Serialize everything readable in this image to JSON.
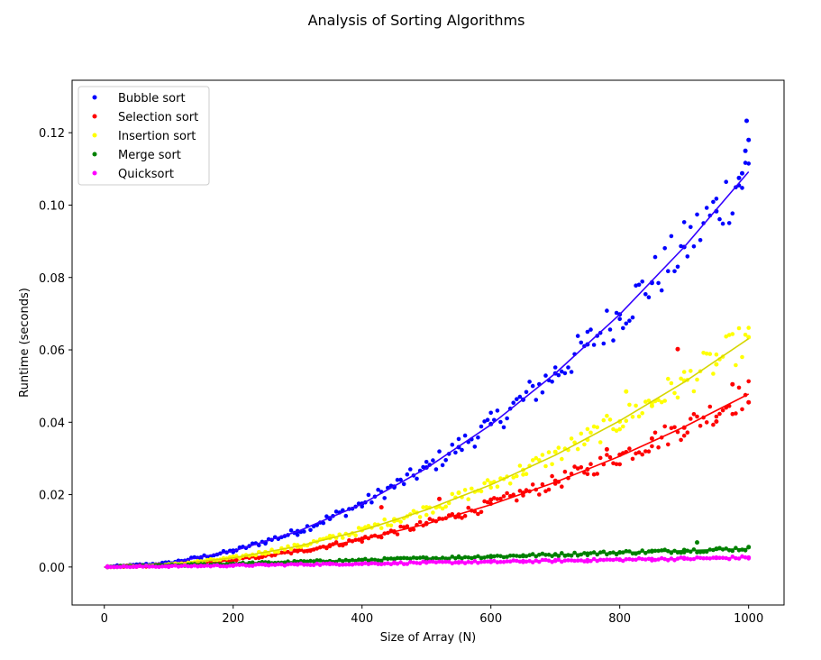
{
  "chart_data": {
    "type": "scatter",
    "title": "Analysis of Sorting Algorithms",
    "xlabel": "Size of Array (N)",
    "ylabel": "Runtime (seconds)",
    "xlim": [
      -50,
      1055
    ],
    "ylim": [
      -0.0105,
      0.1345
    ],
    "xticks": [
      0,
      200,
      400,
      600,
      800,
      1000
    ],
    "xtick_labels": [
      "0",
      "200",
      "400",
      "600",
      "800",
      "1000"
    ],
    "yticks": [
      0.0,
      0.02,
      0.04,
      0.06,
      0.08,
      0.1,
      0.12
    ],
    "ytick_labels": [
      "0.00",
      "0.02",
      "0.04",
      "0.06",
      "0.08",
      "0.10",
      "0.12"
    ],
    "grid": false,
    "legend_position": "top-left",
    "x_range": [
      5,
      1000
    ],
    "series": [
      {
        "name": "Bubble sort",
        "color": "#0000ff",
        "fit_color": "#3300ff",
        "fit_points": [
          [
            0,
            0.0
          ],
          [
            100,
            0.0011
          ],
          [
            200,
            0.0044
          ],
          [
            300,
            0.0098
          ],
          [
            400,
            0.0174
          ],
          [
            500,
            0.0273
          ],
          [
            600,
            0.0393
          ],
          [
            700,
            0.0535
          ],
          [
            800,
            0.0698
          ],
          [
            900,
            0.0884
          ],
          [
            1000,
            0.1092
          ]
        ],
        "samples": [
          [
            5,
            0.0
          ],
          [
            50,
            0.0003
          ],
          [
            100,
            0.0011
          ],
          [
            150,
            0.0025
          ],
          [
            200,
            0.0045
          ],
          [
            250,
            0.0068
          ],
          [
            300,
            0.0099
          ],
          [
            350,
            0.0133
          ],
          [
            400,
            0.0175
          ],
          [
            450,
            0.0222
          ],
          [
            500,
            0.0275
          ],
          [
            550,
            0.0331
          ],
          [
            600,
            0.0395
          ],
          [
            650,
            0.0462
          ],
          [
            700,
            0.0535
          ],
          [
            750,
            0.0615
          ],
          [
            800,
            0.0698
          ],
          [
            850,
            0.0785
          ],
          [
            900,
            0.0884
          ],
          [
            950,
            0.0983
          ],
          [
            985,
            0.1075
          ],
          [
            990,
            0.1088
          ],
          [
            995,
            0.115
          ],
          [
            997,
            0.1233
          ],
          [
            1000,
            0.118
          ]
        ]
      },
      {
        "name": "Selection sort",
        "color": "#ff0000",
        "fit_color": "#ff0000",
        "fit_points": [
          [
            0,
            0.0
          ],
          [
            100,
            0.0005
          ],
          [
            200,
            0.0019
          ],
          [
            300,
            0.0043
          ],
          [
            400,
            0.0076
          ],
          [
            500,
            0.0119
          ],
          [
            600,
            0.0172
          ],
          [
            700,
            0.0234
          ],
          [
            800,
            0.0306
          ],
          [
            900,
            0.0387
          ],
          [
            1000,
            0.0478
          ]
        ],
        "samples": [
          [
            5,
            0.0
          ],
          [
            50,
            0.0001
          ],
          [
            100,
            0.0005
          ],
          [
            150,
            0.0011
          ],
          [
            200,
            0.002
          ],
          [
            250,
            0.0031
          ],
          [
            300,
            0.0044
          ],
          [
            350,
            0.006
          ],
          [
            400,
            0.0078
          ],
          [
            430,
            0.0165
          ],
          [
            450,
            0.0098
          ],
          [
            500,
            0.0121
          ],
          [
            520,
            0.0188
          ],
          [
            550,
            0.0145
          ],
          [
            600,
            0.0186
          ],
          [
            650,
            0.0205
          ],
          [
            700,
            0.0238
          ],
          [
            750,
            0.027
          ],
          [
            780,
            0.0325
          ],
          [
            800,
            0.031
          ],
          [
            850,
            0.0355
          ],
          [
            890,
            0.0602
          ],
          [
            900,
            0.0385
          ],
          [
            950,
            0.0402
          ],
          [
            975,
            0.0505
          ],
          [
            1000,
            0.0455
          ]
        ]
      },
      {
        "name": "Insertion sort",
        "color": "#ffff00",
        "fit_color": "#d6d600",
        "fit_points": [
          [
            0,
            0.0
          ],
          [
            100,
            0.0006
          ],
          [
            200,
            0.0025
          ],
          [
            300,
            0.0057
          ],
          [
            400,
            0.0101
          ],
          [
            500,
            0.0158
          ],
          [
            600,
            0.0227
          ],
          [
            700,
            0.0309
          ],
          [
            800,
            0.0404
          ],
          [
            900,
            0.0511
          ],
          [
            1000,
            0.0631
          ]
        ],
        "samples": [
          [
            5,
            0.0
          ],
          [
            50,
            0.0002
          ],
          [
            100,
            0.0007
          ],
          [
            150,
            0.0015
          ],
          [
            200,
            0.0027
          ],
          [
            250,
            0.0041
          ],
          [
            300,
            0.006
          ],
          [
            350,
            0.008
          ],
          [
            400,
            0.0105
          ],
          [
            450,
            0.0132
          ],
          [
            500,
            0.0165
          ],
          [
            550,
            0.0205
          ],
          [
            600,
            0.0232
          ],
          [
            650,
            0.0268
          ],
          [
            700,
            0.0318
          ],
          [
            750,
            0.0352
          ],
          [
            800,
            0.0402
          ],
          [
            810,
            0.0485
          ],
          [
            850,
            0.0445
          ],
          [
            900,
            0.0515
          ],
          [
            950,
            0.056
          ],
          [
            1000,
            0.0635
          ]
        ]
      },
      {
        "name": "Merge sort",
        "color": "#008000",
        "fit_color": "#008000",
        "fit_points": [
          [
            0,
            0.0
          ],
          [
            100,
            0.0004
          ],
          [
            200,
            0.0009
          ],
          [
            300,
            0.0014
          ],
          [
            400,
            0.0019
          ],
          [
            500,
            0.0024
          ],
          [
            600,
            0.0029
          ],
          [
            700,
            0.0034
          ],
          [
            800,
            0.004
          ],
          [
            900,
            0.0045
          ],
          [
            1000,
            0.0051
          ]
        ],
        "samples": [
          [
            5,
            0.0
          ],
          [
            50,
            0.0002
          ],
          [
            100,
            0.0004
          ],
          [
            150,
            0.0006
          ],
          [
            200,
            0.0009
          ],
          [
            250,
            0.0011
          ],
          [
            300,
            0.0014
          ],
          [
            350,
            0.0016
          ],
          [
            400,
            0.0019
          ],
          [
            450,
            0.0022
          ],
          [
            500,
            0.0025
          ],
          [
            550,
            0.0027
          ],
          [
            600,
            0.003
          ],
          [
            650,
            0.0032
          ],
          [
            700,
            0.0035
          ],
          [
            750,
            0.0037
          ],
          [
            800,
            0.004
          ],
          [
            850,
            0.0043
          ],
          [
            900,
            0.0047
          ],
          [
            920,
            0.0068
          ],
          [
            950,
            0.005
          ],
          [
            1000,
            0.0055
          ]
        ]
      },
      {
        "name": "Quicksort",
        "color": "#ff00ff",
        "fit_color": "#ff00ff",
        "fit_points": [
          [
            0,
            0.0
          ],
          [
            100,
            0.0002
          ],
          [
            200,
            0.0004
          ],
          [
            300,
            0.0007
          ],
          [
            400,
            0.0009
          ],
          [
            500,
            0.0012
          ],
          [
            600,
            0.0014
          ],
          [
            700,
            0.0017
          ],
          [
            800,
            0.002
          ],
          [
            900,
            0.0023
          ],
          [
            1000,
            0.0026
          ]
        ],
        "samples": [
          [
            5,
            0.0
          ],
          [
            50,
            0.0001
          ],
          [
            100,
            0.0002
          ],
          [
            150,
            0.0003
          ],
          [
            200,
            0.0004
          ],
          [
            250,
            0.0006
          ],
          [
            300,
            0.0007
          ],
          [
            350,
            0.0008
          ],
          [
            400,
            0.0009
          ],
          [
            450,
            0.0011
          ],
          [
            500,
            0.0012
          ],
          [
            550,
            0.0013
          ],
          [
            600,
            0.0014
          ],
          [
            650,
            0.0016
          ],
          [
            700,
            0.0017
          ],
          [
            750,
            0.0019
          ],
          [
            800,
            0.002
          ],
          [
            850,
            0.0022
          ],
          [
            900,
            0.0023
          ],
          [
            950,
            0.0025
          ],
          [
            1000,
            0.0026
          ]
        ]
      }
    ]
  }
}
